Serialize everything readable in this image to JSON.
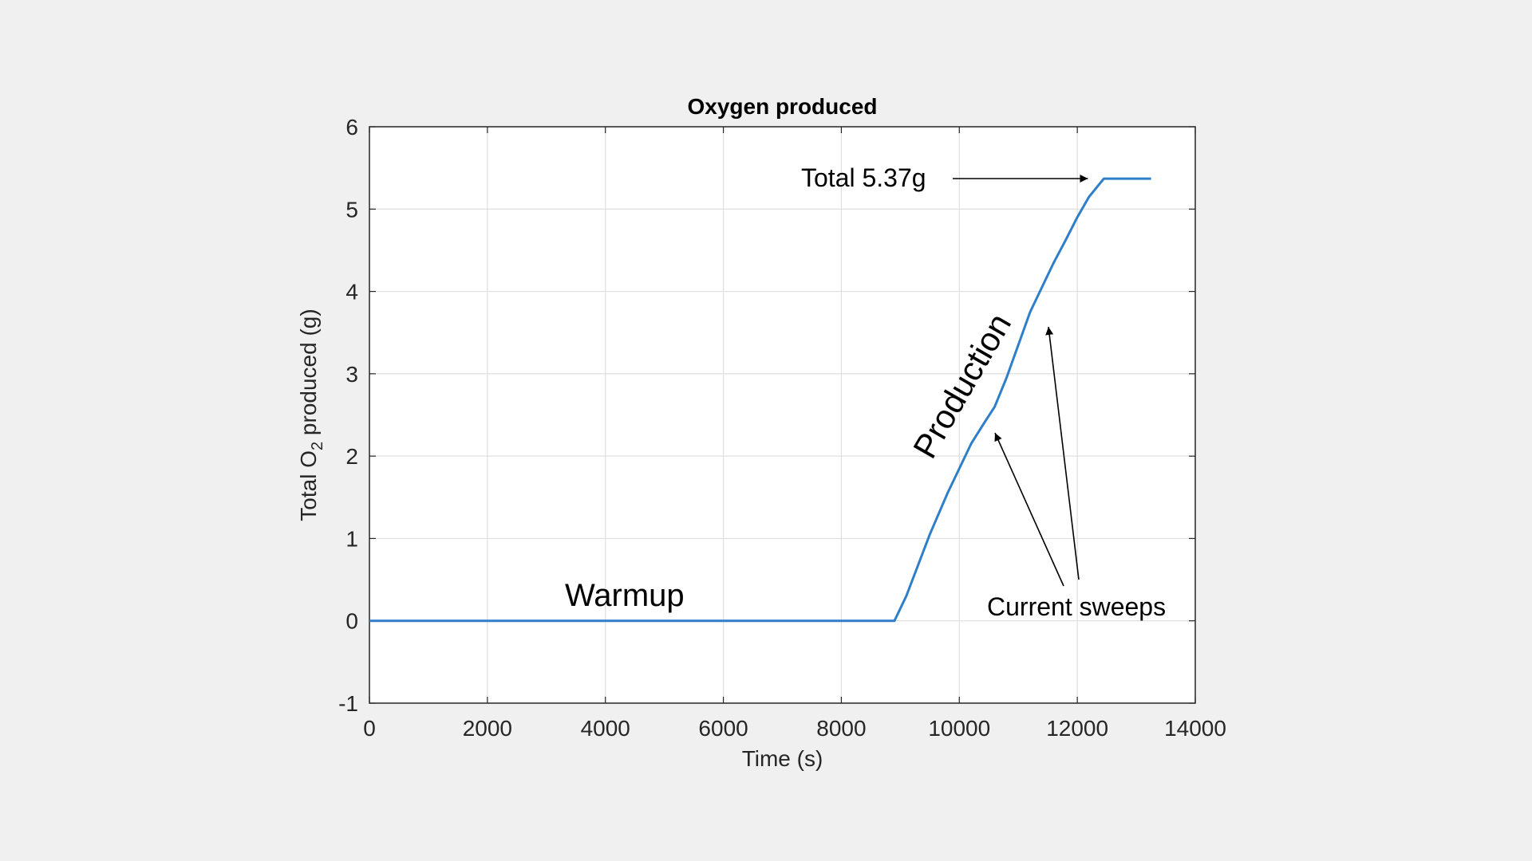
{
  "chart_data": {
    "type": "line",
    "title": "Oxygen produced",
    "xlabel": "Time (s)",
    "ylabel_parts": [
      "Total O",
      "2",
      " produced (g)"
    ],
    "xlim": [
      0,
      14000
    ],
    "ylim": [
      -1,
      6
    ],
    "xticks": [
      0,
      2000,
      4000,
      6000,
      8000,
      10000,
      12000,
      14000
    ],
    "yticks": [
      -1,
      0,
      1,
      2,
      3,
      4,
      5,
      6
    ],
    "grid": true,
    "line_color": "#2f7fc8",
    "series": [
      {
        "x": [
          0,
          8900,
          9100,
          9500,
          9800,
          10000,
          10200,
          10400,
          10600,
          10800,
          11000,
          11200,
          11400,
          11600,
          11800,
          12000,
          12200,
          12450,
          13250
        ],
        "y": [
          0,
          0,
          0.3,
          1.05,
          1.55,
          1.85,
          2.15,
          2.38,
          2.6,
          2.95,
          3.35,
          3.75,
          4.05,
          4.35,
          4.62,
          4.9,
          5.15,
          5.37,
          5.37
        ]
      }
    ],
    "annotations": {
      "total": "Total 5.37g",
      "production": "Production",
      "warmup": "Warmup",
      "sweeps": "Current sweeps"
    }
  },
  "colors": {
    "background": "#f0f0f0",
    "plot_bg": "#ffffff",
    "grid": "#dfdfdf",
    "axis": "#262626"
  }
}
